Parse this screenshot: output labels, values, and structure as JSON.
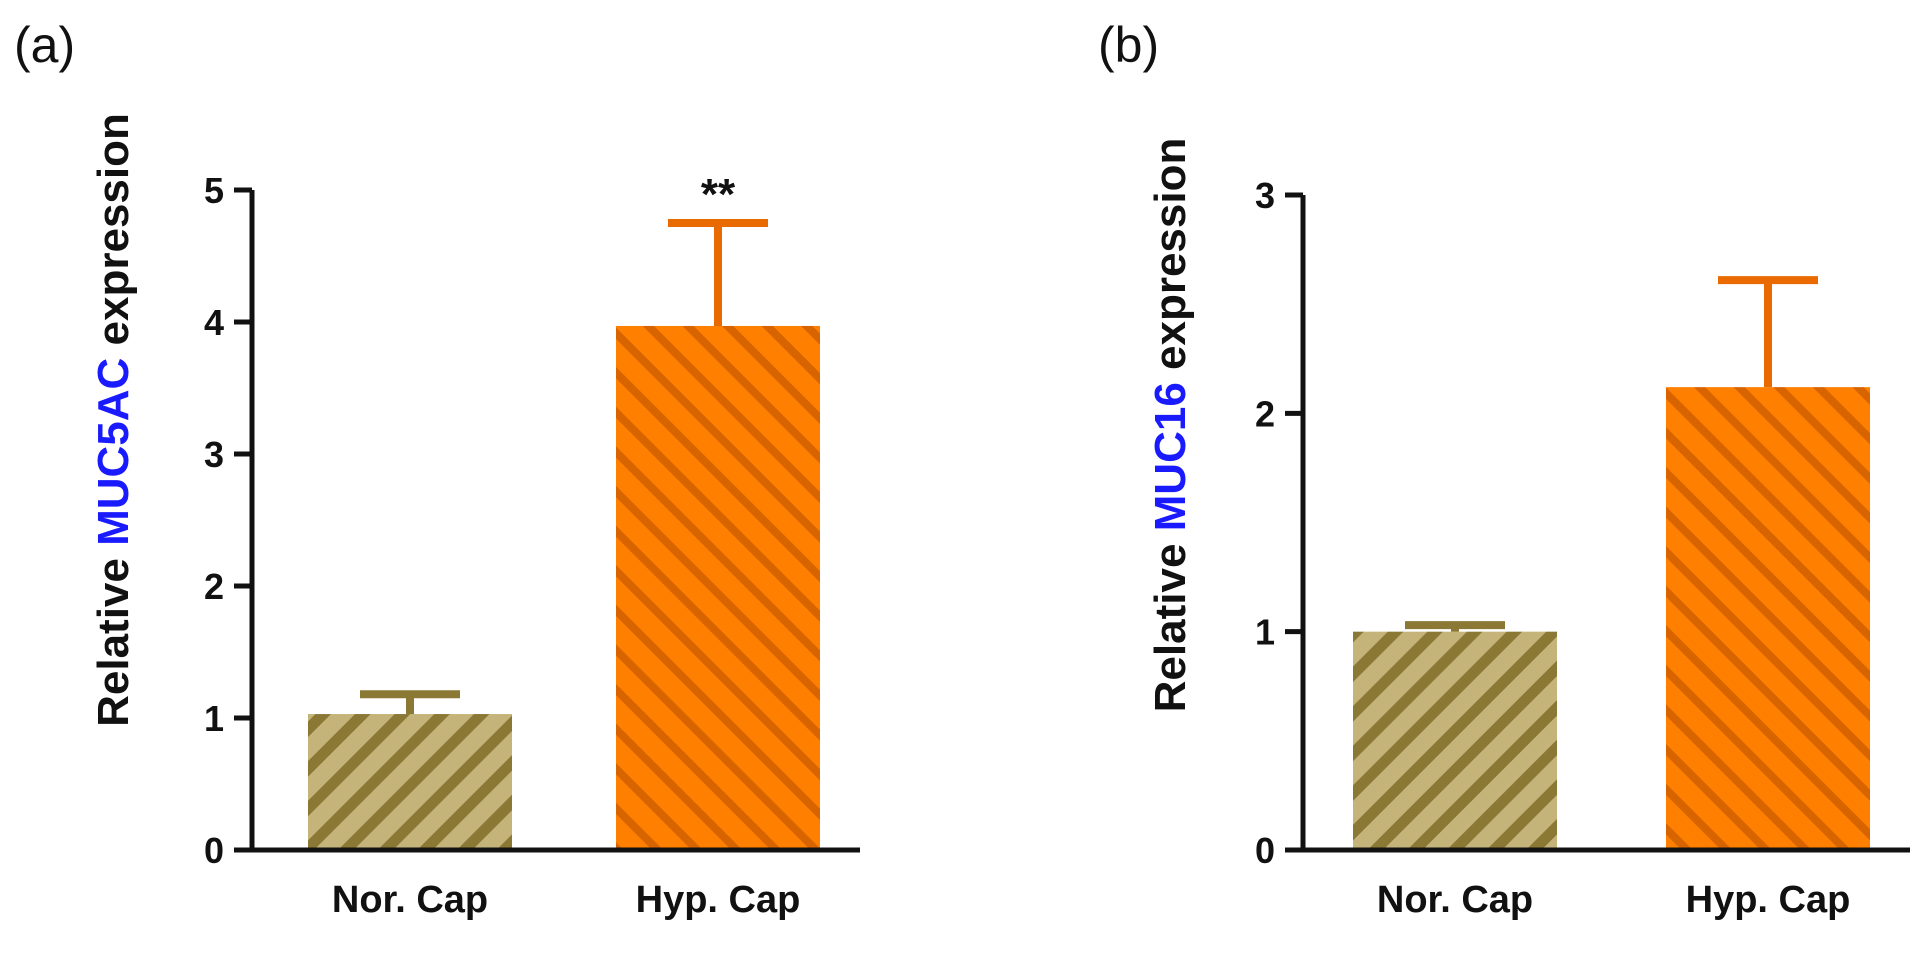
{
  "colors": {
    "nor_base": "#c4b47a",
    "nor_stripe": "#8a7834",
    "nor_error": "#8a7834",
    "hyp_base": "#ff7f00",
    "hyp_stripe": "#d86400",
    "hyp_error": "#e86a00",
    "axis": "#111111",
    "gene_text": "#1a1aff"
  },
  "chart_data": [
    {
      "type": "bar",
      "panel": "(a)",
      "categories": [
        "Nor. Cap",
        "Hyp. Cap"
      ],
      "values": [
        1.03,
        3.97
      ],
      "errors": [
        0.15,
        0.78
      ],
      "ylabel_prefix": "Relative ",
      "ylabel_gene": "MUC5AC",
      "ylabel_suffix": " expression",
      "ylim": [
        0,
        5
      ],
      "yticks": [
        0,
        1,
        2,
        3,
        4,
        5
      ],
      "significance": [
        "",
        "**"
      ]
    },
    {
      "type": "bar",
      "panel": "(b)",
      "categories": [
        "Nor. Cap",
        "Hyp. Cap"
      ],
      "values": [
        1.0,
        2.12
      ],
      "errors": [
        0.03,
        0.49
      ],
      "ylabel_prefix": "Relative ",
      "ylabel_gene": "MUC16",
      "ylabel_suffix": " expression",
      "ylim": [
        0,
        3
      ],
      "yticks": [
        0,
        1,
        2,
        3
      ],
      "significance": [
        "",
        ""
      ]
    }
  ]
}
